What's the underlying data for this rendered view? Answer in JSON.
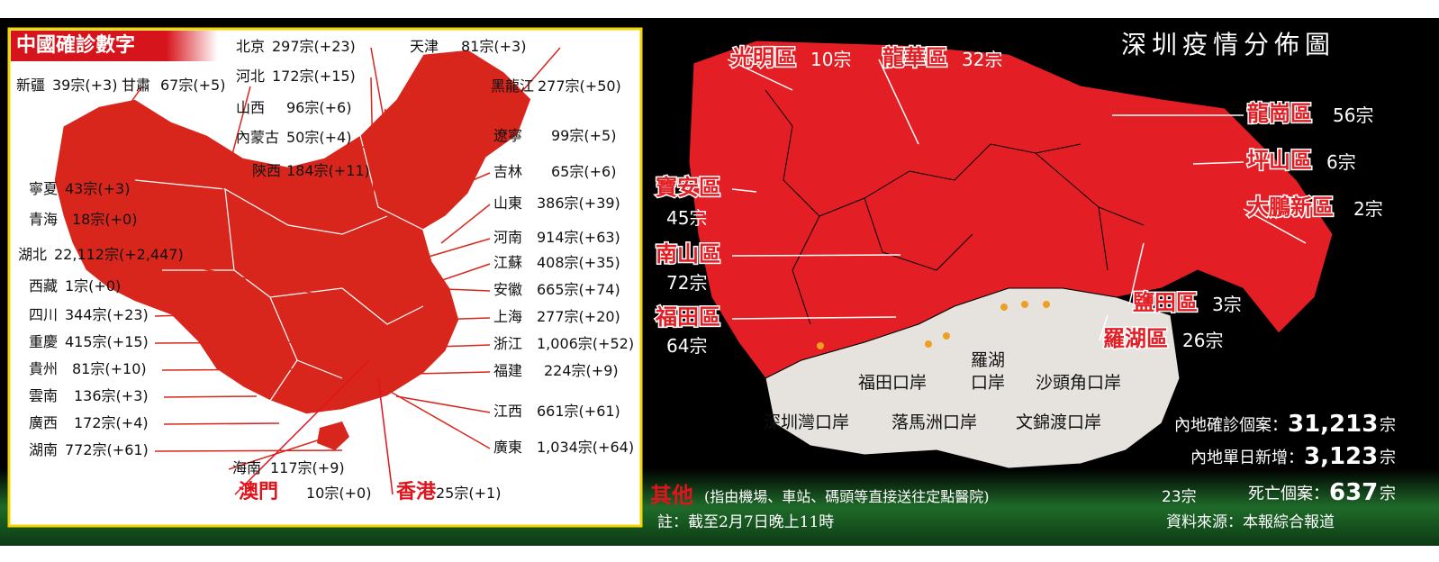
{
  "china": {
    "title": "中國確診數字",
    "provinces": [
      {
        "name": "新疆",
        "count": "39宗(+3)"
      },
      {
        "name": "甘肅",
        "count": "67宗(+5)"
      },
      {
        "name": "寧夏",
        "count": "43宗(+3)"
      },
      {
        "name": "青海",
        "count": "18宗(+0)"
      },
      {
        "name": "湖北",
        "count": "22,112宗(+2,447)"
      },
      {
        "name": "西藏",
        "count": "1宗(+0)"
      },
      {
        "name": "四川",
        "count": "344宗(+23)"
      },
      {
        "name": "重慶",
        "count": "415宗(+15)"
      },
      {
        "name": "貴州",
        "count": "81宗(+10)"
      },
      {
        "name": "雲南",
        "count": "136宗(+3)"
      },
      {
        "name": "廣西",
        "count": "172宗(+4)"
      },
      {
        "name": "湖南",
        "count": "772宗(+61)"
      },
      {
        "name": "北京",
        "count": "297宗(+23)"
      },
      {
        "name": "河北",
        "count": "172宗(+15)"
      },
      {
        "name": "山西",
        "count": "96宗(+6)"
      },
      {
        "name": "內蒙古",
        "count": "50宗(+4)"
      },
      {
        "name": "陝西",
        "count": "184宗(+11)"
      },
      {
        "name": "天津",
        "count": "81宗(+3)"
      },
      {
        "name": "黑龍江",
        "count": "277宗(+50)"
      },
      {
        "name": "遼寧",
        "count": "99宗(+5)"
      },
      {
        "name": "吉林",
        "count": "65宗(+6)"
      },
      {
        "name": "山東",
        "count": "386宗(+39)"
      },
      {
        "name": "河南",
        "count": "914宗(+63)"
      },
      {
        "name": "江蘇",
        "count": "408宗(+35)"
      },
      {
        "name": "安徽",
        "count": "665宗(+74)"
      },
      {
        "name": "上海",
        "count": "277宗(+20)"
      },
      {
        "name": "浙江",
        "count": "1,006宗(+52)"
      },
      {
        "name": "福建",
        "count": "224宗(+9)"
      },
      {
        "name": "江西",
        "count": "661宗(+61)"
      },
      {
        "name": "廣東",
        "count": "1,034宗(+64)"
      },
      {
        "name": "海南",
        "count": "117宗(+9)"
      },
      {
        "name": "澳門",
        "count": "10宗(+0)"
      },
      {
        "name": "香港",
        "count": "25宗(+1)"
      }
    ]
  },
  "shenzhen": {
    "title": "深圳疫情分佈圖",
    "districts": [
      {
        "name": "光明區",
        "count": "10宗"
      },
      {
        "name": "龍華區",
        "count": "32宗"
      },
      {
        "name": "龍崗區",
        "count": "56宗"
      },
      {
        "name": "坪山區",
        "count": "6宗"
      },
      {
        "name": "大鵬新區",
        "count": "2宗"
      },
      {
        "name": "寶安區",
        "count": "45宗"
      },
      {
        "name": "南山區",
        "count": "72宗"
      },
      {
        "name": "福田區",
        "count": "64宗"
      },
      {
        "name": "鹽田區",
        "count": "3宗"
      },
      {
        "name": "羅湖區",
        "count": "26宗"
      }
    ],
    "ports": [
      "福田口岸",
      "羅湖口岸",
      "沙頭角口岸",
      "深圳灣口岸",
      "落馬洲口岸",
      "文錦渡口岸"
    ],
    "other": {
      "label": "其他",
      "note": "(指由機場、車站、碼頭等直接送往定點醫院)",
      "count": "23宗"
    },
    "stats": [
      {
        "label": "內地確診個案：",
        "value": "31,213",
        "unit": "宗"
      },
      {
        "label": "內地單日新增：",
        "value": "3,123",
        "unit": "宗"
      },
      {
        "label": "死亡個案：",
        "value": "637",
        "unit": "宗"
      }
    ],
    "footnote": "註：截至2月7日晚上11時",
    "source": "資料來源：本報綜合報道"
  }
}
